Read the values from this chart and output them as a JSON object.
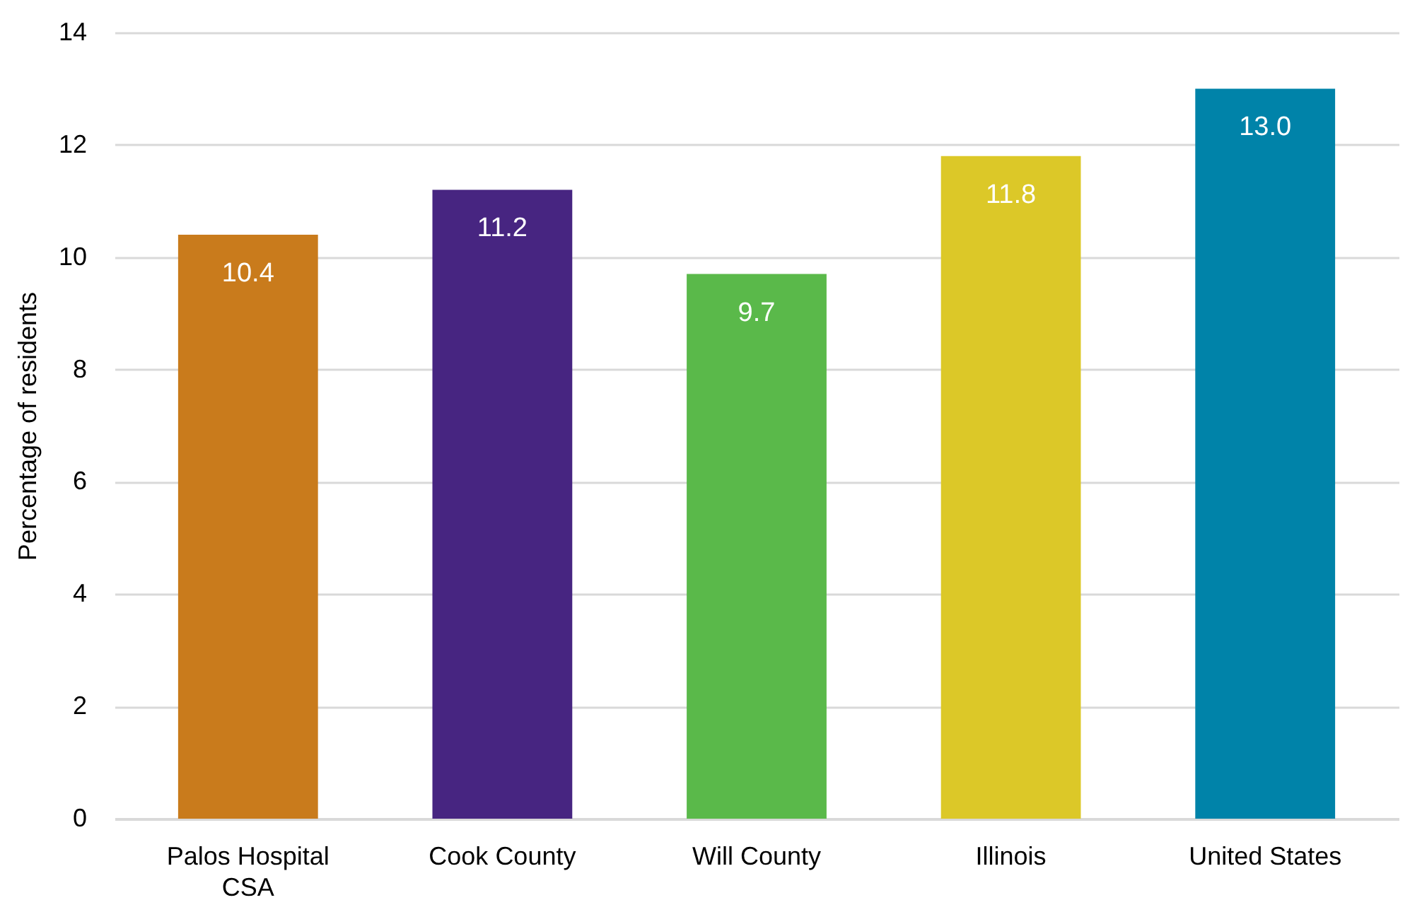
{
  "chart_data": {
    "type": "bar",
    "ylabel": "Percentage of residents",
    "categories": [
      "Palos Hospital CSA",
      "Cook County",
      "Will County",
      "Illinois",
      "United States"
    ],
    "values": [
      10.4,
      11.2,
      9.7,
      11.8,
      13.0
    ],
    "value_labels": [
      "10.4",
      "11.2",
      "9.7",
      "11.8",
      "13.0"
    ],
    "colors": [
      "#c97b1c",
      "#472581",
      "#5ab94a",
      "#dcc828",
      "#0083a9"
    ],
    "ylim": [
      0,
      14
    ],
    "yticks": [
      0,
      2,
      4,
      6,
      8,
      10,
      12,
      14
    ],
    "grid": "y"
  }
}
